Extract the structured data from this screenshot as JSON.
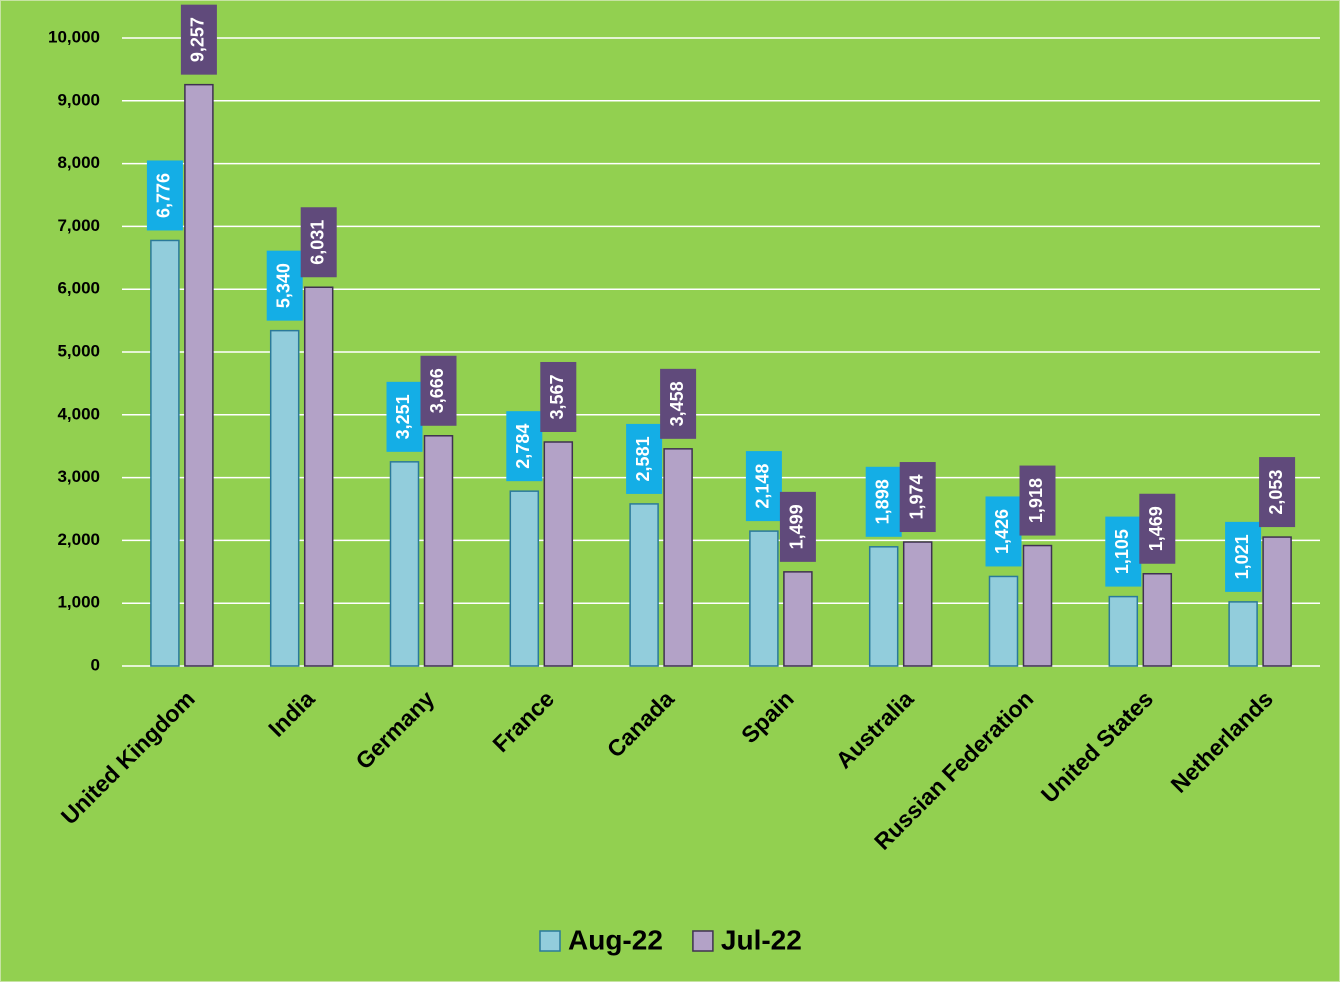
{
  "chart_data": {
    "type": "bar",
    "categories": [
      "United Kingdom",
      "India",
      "Germany",
      "France",
      "Canada",
      "Spain",
      "Australia",
      "Russian Federation",
      "United States",
      "Netherlands"
    ],
    "series": [
      {
        "name": "Aug-22",
        "color": "#92cddc",
        "values": [
          6776,
          5340,
          3251,
          2784,
          2581,
          2148,
          1898,
          1426,
          1105,
          1021
        ],
        "value_labels": [
          "6,776",
          "5,340",
          "3,251",
          "2,784",
          "2,581",
          "2,148",
          "1,898",
          "1,426",
          "1,105",
          "1,021"
        ]
      },
      {
        "name": "Jul-22",
        "color": "#b3a2c7",
        "values": [
          9257,
          6031,
          3666,
          3567,
          3458,
          1499,
          1974,
          1918,
          1469,
          2053
        ],
        "value_labels": [
          "9,257",
          "6,031",
          "3,666",
          "3,567",
          "3,458",
          "1,499",
          "1,974",
          "1,918",
          "1,469",
          "2,053"
        ]
      }
    ],
    "ylim": [
      0,
      10000
    ],
    "yticks": [
      0,
      {
        "value": 1000,
        "label": "1,000"
      },
      {
        "value": 2000,
        "label": "2,000"
      },
      {
        "value": 3000,
        "label": "3,000"
      },
      {
        "value": 4000,
        "label": "4,000"
      },
      {
        "value": 5000,
        "label": "5,000"
      },
      {
        "value": 6000,
        "label": "6,000"
      },
      {
        "value": 7000,
        "label": "7,000"
      },
      {
        "value": 8000,
        "label": "8,000"
      },
      {
        "value": 9000,
        "label": "9,000"
      },
      {
        "value": 10000,
        "label": "10,000"
      }
    ],
    "grid": true,
    "legend": "bottom"
  }
}
